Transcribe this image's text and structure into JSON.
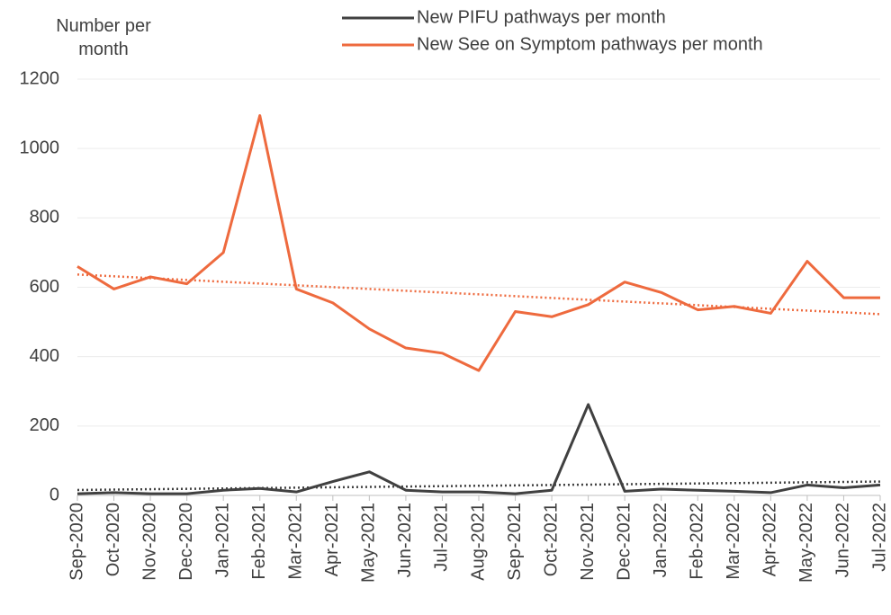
{
  "chart_data": {
    "type": "line",
    "y_label": "Number per month",
    "categories": [
      "Sep-2020",
      "Oct-2020",
      "Nov-2020",
      "Dec-2020",
      "Jan-2021",
      "Feb-2021",
      "Mar-2021",
      "Apr-2021",
      "May-2021",
      "Jun-2021",
      "Jul-2021",
      "Aug-2021",
      "Sep-2021",
      "Oct-2021",
      "Nov-2021",
      "Dec-2021",
      "Jan-2022",
      "Feb-2022",
      "Mar-2022",
      "Apr-2022",
      "May-2022",
      "Jun-2022",
      "Jul-2022"
    ],
    "series": [
      {
        "name": "New PIFU pathways per month",
        "color": "#404040",
        "values": [
          5,
          8,
          5,
          5,
          15,
          20,
          10,
          40,
          68,
          15,
          10,
          10,
          5,
          15,
          262,
          12,
          18,
          15,
          12,
          8,
          30,
          22,
          30
        ]
      },
      {
        "name": "New See on Symptom pathways per month",
        "color": "#ee6a3e",
        "values": [
          660,
          595,
          630,
          610,
          700,
          1095,
          595,
          555,
          480,
          425,
          410,
          360,
          530,
          515,
          550,
          615,
          585,
          535,
          545,
          525,
          675,
          570,
          570
        ]
      }
    ],
    "ylim": [
      0,
      1200
    ],
    "yticks": [
      0,
      200,
      400,
      600,
      800,
      1000,
      1200
    ],
    "grid": true,
    "trendline": true,
    "legend": "top"
  }
}
